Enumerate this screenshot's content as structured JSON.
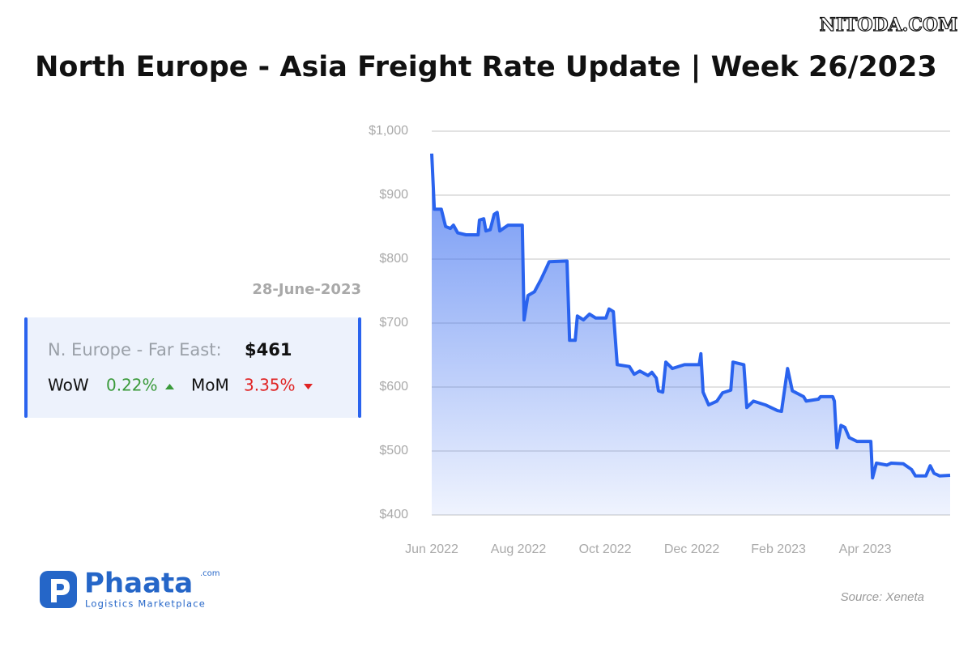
{
  "watermark": "NITODA.COM",
  "chart_data": {
    "type": "line",
    "title": "North Europe - Asia Freight Rate Update | Week 26/2023",
    "color": "#2a63ee",
    "grid": true,
    "x": [
      0.0,
      0.06,
      0.22,
      0.32,
      0.43,
      0.5,
      0.6,
      0.79,
      1.07,
      1.1,
      1.2,
      1.25,
      1.35,
      1.44,
      1.51,
      1.57,
      1.76,
      2.09,
      2.13,
      2.22,
      2.37,
      2.52,
      2.65,
      2.71,
      3.12,
      3.18,
      3.31,
      3.36,
      3.5,
      3.64,
      3.78,
      4.02,
      4.09,
      4.19,
      4.28,
      4.56,
      4.67,
      4.8,
      4.99,
      5.08,
      5.18,
      5.23,
      5.33,
      5.4,
      5.55,
      5.83,
      6.17,
      6.21,
      6.26,
      6.39,
      6.58,
      6.71,
      6.9,
      6.95,
      7.2,
      7.27,
      7.42,
      7.7,
      7.98,
      8.07,
      8.21,
      8.32,
      8.58,
      8.64,
      8.92,
      8.97,
      9.25,
      9.29,
      9.35,
      9.44,
      9.53,
      9.63,
      9.81,
      10.13,
      10.17,
      10.26,
      10.5,
      10.6,
      10.88,
      11.07,
      11.16,
      11.4,
      11.5,
      11.59,
      11.72,
      11.96
    ],
    "values": [
      965,
      878,
      878,
      851,
      848,
      853,
      841,
      838,
      838,
      861,
      863,
      844,
      846,
      870,
      873,
      844,
      853,
      853,
      705,
      743,
      749,
      768,
      787,
      796,
      797,
      673,
      673,
      711,
      705,
      714,
      708,
      708,
      722,
      718,
      635,
      632,
      620,
      625,
      618,
      623,
      614,
      594,
      592,
      639,
      629,
      635,
      635,
      652,
      592,
      572,
      578,
      591,
      595,
      639,
      635,
      568,
      578,
      572,
      563,
      562,
      629,
      594,
      585,
      578,
      581,
      585,
      585,
      578,
      505,
      540,
      537,
      521,
      515,
      515,
      458,
      481,
      478,
      481,
      480,
      471,
      461,
      461,
      477,
      465,
      461,
      462
    ],
    "xlim": [
      0,
      11.96
    ],
    "xticks": [
      {
        "value": 0,
        "label": "Jun 2022"
      },
      {
        "value": 2,
        "label": "Aug 2022"
      },
      {
        "value": 4,
        "label": "Oct 2022"
      },
      {
        "value": 6,
        "label": "Dec 2022"
      },
      {
        "value": 8,
        "label": "Feb 2023"
      },
      {
        "value": 10,
        "label": "Apr 2023"
      }
    ],
    "ylim": [
      400,
      1000
    ],
    "yticks": [
      {
        "value": 400,
        "label": "$400"
      },
      {
        "value": 500,
        "label": "$500"
      },
      {
        "value": 600,
        "label": "$600"
      },
      {
        "value": 700,
        "label": "$700"
      },
      {
        "value": 800,
        "label": "$800"
      },
      {
        "value": 900,
        "label": "$900"
      },
      {
        "value": 1000,
        "label": "$1,000"
      }
    ]
  },
  "card": {
    "date": "28-June-2023",
    "route": "N. Europe - Far East:",
    "price": "$461",
    "wow_label": "WoW",
    "wow_value": "0.22%",
    "mom_label": "MoM",
    "mom_value": "3.35%"
  },
  "logo": {
    "name": "Phaata",
    "domain": ".com",
    "tagline": "Logistics Marketplace"
  },
  "source": "Source: Xeneta"
}
